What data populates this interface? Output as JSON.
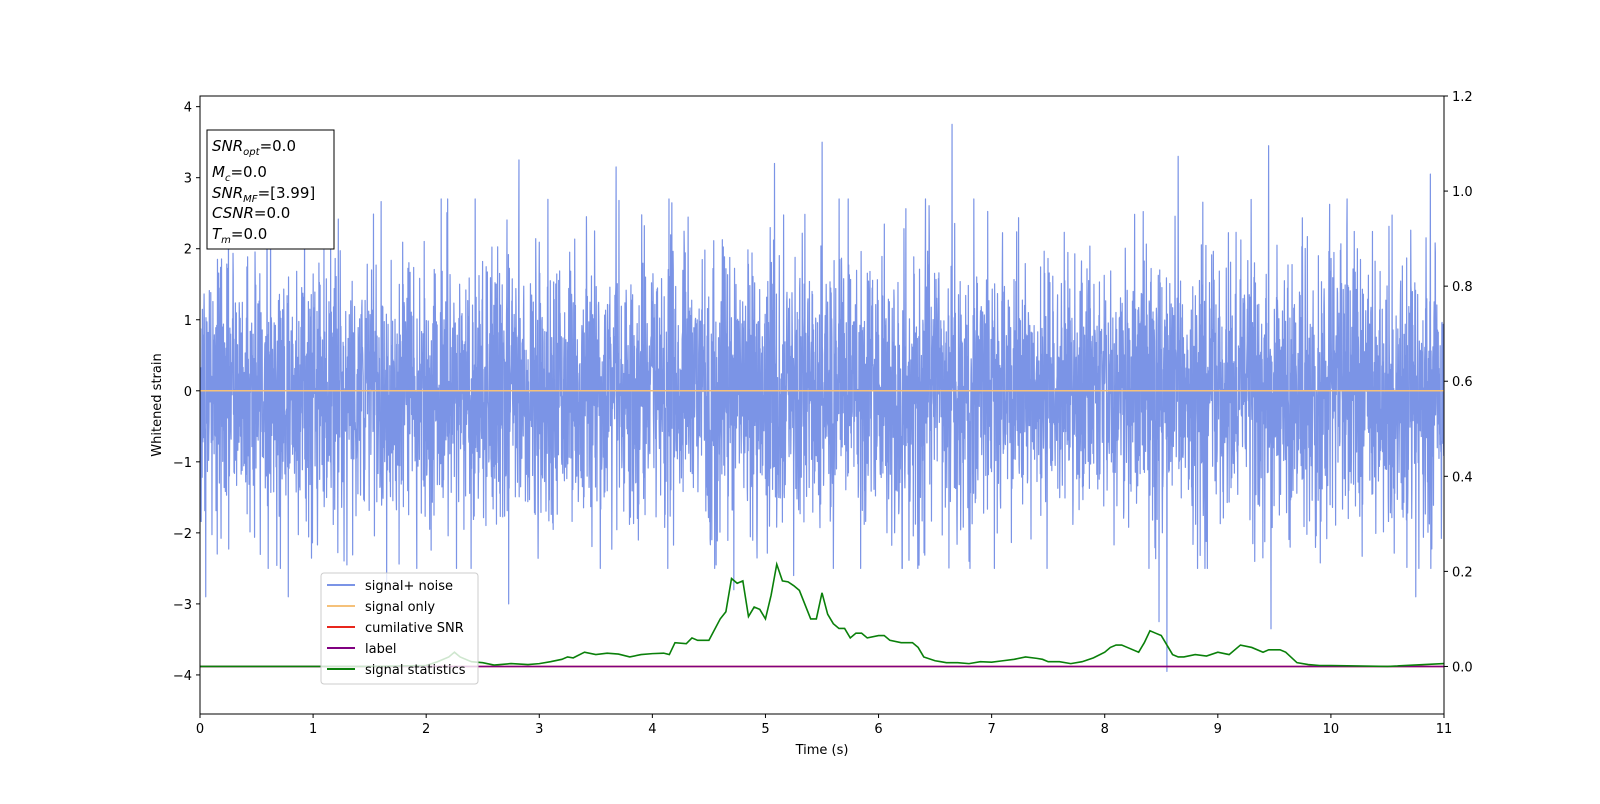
{
  "chart_data": {
    "type": "line",
    "xlabel": "Time (s)",
    "ylabel": "Whitened strain",
    "xlim": [
      0,
      11
    ],
    "ylim_left": [
      -4.55,
      4.15
    ],
    "ylim_right": [
      -0.1,
      1.2
    ],
    "x_ticks": [
      0,
      1,
      2,
      3,
      4,
      5,
      6,
      7,
      8,
      9,
      10,
      11
    ],
    "y_ticks_left": [
      -4,
      -3,
      -2,
      -1,
      0,
      1,
      2,
      3,
      4
    ],
    "y_ticks_right": [
      0.0,
      0.2,
      0.4,
      0.6,
      0.8,
      1.0,
      1.2
    ],
    "x_tick_labels": [
      "0",
      "1",
      "2",
      "3",
      "4",
      "5",
      "6",
      "7",
      "8",
      "9",
      "10",
      "11"
    ],
    "y_tick_labels_left": [
      "−4",
      "−3",
      "−2",
      "−1",
      "0",
      "1",
      "2",
      "3",
      "4"
    ],
    "y_tick_labels_right": [
      "0.0",
      "0.2",
      "0.4",
      "0.6",
      "0.8",
      "1.0",
      "1.2"
    ],
    "grid": false,
    "legend_position": "lower-left",
    "info_box": {
      "snr_opt": {
        "base": "SNR",
        "sub": "opt",
        "value": "=0.0"
      },
      "mc": {
        "base": "M",
        "sub": "c",
        "value": "=0.0"
      },
      "snr_mf": {
        "base": "SNR",
        "sub": "MF",
        "value": "=[3.99]"
      },
      "csnr": {
        "base": "CSNR",
        "sub": "",
        "value": "=0.0"
      },
      "tm": {
        "base": "T",
        "sub": "m",
        "value": "=0.0"
      }
    },
    "series": [
      {
        "name": "signal+ noise",
        "color": "#7b94e6",
        "axis": "left",
        "kind": "noise",
        "envelope_typical": [
          -1.6,
          1.6
        ],
        "notable_peaks": [
          {
            "x": 0.05,
            "y": -2.9
          },
          {
            "x": 0.78,
            "y": -2.9
          },
          {
            "x": 1.65,
            "y": -2.75
          },
          {
            "x": 2.82,
            "y": 3.25
          },
          {
            "x": 2.73,
            "y": -3.0
          },
          {
            "x": 3.68,
            "y": 3.15
          },
          {
            "x": 4.72,
            "y": -2.8
          },
          {
            "x": 5.08,
            "y": 3.2
          },
          {
            "x": 5.25,
            "y": -2.6
          },
          {
            "x": 5.5,
            "y": 3.5
          },
          {
            "x": 6.65,
            "y": 3.75
          },
          {
            "x": 6.8,
            "y": -2.4
          },
          {
            "x": 8.55,
            "y": -3.95
          },
          {
            "x": 8.48,
            "y": -3.25
          },
          {
            "x": 8.65,
            "y": 3.3
          },
          {
            "x": 9.45,
            "y": 3.45
          },
          {
            "x": 9.47,
            "y": -3.35
          },
          {
            "x": 10.88,
            "y": 3.05
          },
          {
            "x": 10.75,
            "y": -2.9
          }
        ]
      },
      {
        "name": "signal only",
        "color": "#f5c17a",
        "axis": "left",
        "x": [
          0,
          11
        ],
        "y": [
          0,
          0
        ]
      },
      {
        "name": "cumilative SNR",
        "color": "#e8261c",
        "axis": "right",
        "x": [
          0,
          11
        ],
        "y": [
          0,
          0
        ]
      },
      {
        "name": "label",
        "color": "#800080",
        "axis": "right",
        "x": [
          0,
          11
        ],
        "y": [
          0,
          0
        ]
      },
      {
        "name": "signal statistics",
        "color": "#0a800a",
        "axis": "right",
        "x": [
          0,
          0.5,
          1,
          1.5,
          2,
          2.1,
          2.2,
          2.25,
          2.3,
          2.4,
          2.5,
          2.6,
          2.75,
          2.9,
          3.0,
          3.1,
          3.2,
          3.25,
          3.3,
          3.4,
          3.5,
          3.6,
          3.7,
          3.8,
          3.9,
          4.0,
          4.1,
          4.15,
          4.2,
          4.3,
          4.35,
          4.4,
          4.5,
          4.6,
          4.65,
          4.7,
          4.75,
          4.8,
          4.85,
          4.9,
          4.95,
          5.0,
          5.05,
          5.1,
          5.15,
          5.2,
          5.25,
          5.3,
          5.4,
          5.45,
          5.5,
          5.55,
          5.6,
          5.65,
          5.7,
          5.75,
          5.8,
          5.85,
          5.9,
          6.0,
          6.05,
          6.1,
          6.2,
          6.3,
          6.35,
          6.4,
          6.5,
          6.55,
          6.6,
          6.7,
          6.8,
          6.9,
          7.0,
          7.1,
          7.2,
          7.3,
          7.4,
          7.45,
          7.5,
          7.55,
          7.6,
          7.7,
          7.8,
          7.9,
          8.0,
          8.05,
          8.1,
          8.15,
          8.2,
          8.3,
          8.35,
          8.4,
          8.45,
          8.5,
          8.55,
          8.6,
          8.65,
          8.7,
          8.8,
          8.9,
          9.0,
          9.1,
          9.2,
          9.3,
          9.4,
          9.45,
          9.5,
          9.55,
          9.6,
          9.7,
          9.8,
          9.9,
          10,
          10.5,
          11
        ],
        "y": [
          0.0,
          0.0,
          0.0,
          0.0,
          0.002,
          0.01,
          0.02,
          0.03,
          0.02,
          0.01,
          0.008,
          0.003,
          0.006,
          0.004,
          0.006,
          0.01,
          0.015,
          0.02,
          0.018,
          0.03,
          0.025,
          0.028,
          0.026,
          0.02,
          0.025,
          0.027,
          0.028,
          0.025,
          0.05,
          0.048,
          0.06,
          0.055,
          0.055,
          0.1,
          0.115,
          0.185,
          0.175,
          0.18,
          0.105,
          0.125,
          0.12,
          0.1,
          0.15,
          0.215,
          0.18,
          0.178,
          0.17,
          0.16,
          0.1,
          0.1,
          0.155,
          0.11,
          0.09,
          0.08,
          0.08,
          0.06,
          0.07,
          0.07,
          0.06,
          0.065,
          0.065,
          0.055,
          0.05,
          0.05,
          0.04,
          0.02,
          0.012,
          0.01,
          0.008,
          0.008,
          0.006,
          0.01,
          0.009,
          0.012,
          0.015,
          0.02,
          0.017,
          0.015,
          0.01,
          0.01,
          0.01,
          0.006,
          0.01,
          0.018,
          0.03,
          0.04,
          0.045,
          0.045,
          0.04,
          0.03,
          0.05,
          0.075,
          0.07,
          0.065,
          0.045,
          0.025,
          0.02,
          0.02,
          0.025,
          0.022,
          0.03,
          0.025,
          0.045,
          0.04,
          0.03,
          0.035,
          0.035,
          0.035,
          0.03,
          0.008,
          0.004,
          0.002,
          0.002,
          0.0,
          0.006
        ]
      }
    ]
  }
}
